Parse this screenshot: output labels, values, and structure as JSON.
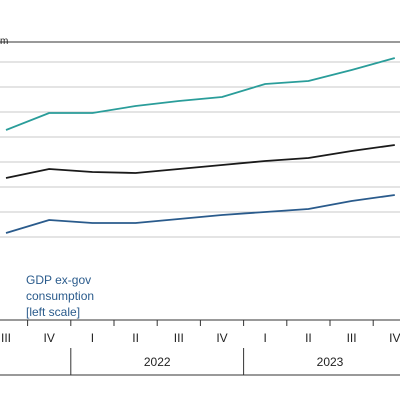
{
  "chart_data": {
    "type": "line",
    "unit_label": "m",
    "categories": [
      "III",
      "IV",
      "I",
      "II",
      "III",
      "IV",
      "I",
      "II",
      "III",
      "IV"
    ],
    "years": [
      {
        "label": "2022",
        "from": 2,
        "to": 5
      },
      {
        "label": "2023",
        "from": 6,
        "to": 9
      }
    ],
    "grid": true,
    "series": [
      {
        "color": "#2a9d9a",
        "values": [
          77,
          94,
          94,
          101,
          106,
          110,
          123,
          126,
          137,
          149
        ]
      },
      {
        "color": "#1a1a1a",
        "values": [
          29,
          38,
          35,
          34,
          38,
          42,
          46,
          49,
          56,
          62
        ]
      },
      {
        "color": "#2a5b8c",
        "values": [
          -26,
          -13,
          -16,
          -16,
          -12,
          -8,
          -5,
          -2,
          6,
          12
        ]
      }
    ],
    "ylim": [
      -45,
      165
    ],
    "annotation": [
      "GDP ex-gov",
      "consumption",
      "[left scale]"
    ]
  }
}
